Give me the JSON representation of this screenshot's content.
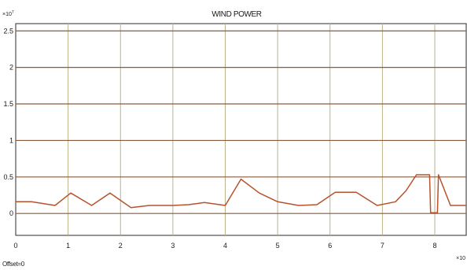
{
  "chart_data": {
    "type": "line",
    "title": "WIND POWER",
    "y_multiplier_label": "×10",
    "y_multiplier_exponent": "7",
    "x_multiplier_label": "×10",
    "offset_label": "Offset=0",
    "xlim": [
      0,
      8.6
    ],
    "ylim": [
      -0.3,
      2.6
    ],
    "x_ticks": [
      0,
      1,
      2,
      3,
      4,
      5,
      6,
      7,
      8
    ],
    "x_tick_labels": [
      "0",
      "1",
      "2",
      "3",
      "4",
      "5",
      "6",
      "7",
      "8"
    ],
    "y_ticks": [
      0,
      0.5,
      1,
      1.5,
      2,
      2.5
    ],
    "y_tick_labels": [
      "0",
      "0.5",
      "1",
      "1.5",
      "2",
      "2.5"
    ],
    "grid": true,
    "series_color": "#b5532d",
    "series": [
      {
        "x": [
          0,
          0.3,
          0.75,
          1.05,
          1.45,
          1.8,
          2.2,
          2.55,
          3.0,
          3.3,
          3.6,
          4.0,
          4.3,
          4.65,
          5.0,
          5.4,
          5.75,
          6.1,
          6.5,
          6.9,
          7.25,
          7.45,
          7.65,
          7.9,
          7.92,
          8.05,
          8.07,
          8.3,
          8.6
        ],
        "y": [
          0.16,
          0.16,
          0.11,
          0.28,
          0.11,
          0.28,
          0.08,
          0.11,
          0.11,
          0.12,
          0.15,
          0.11,
          0.47,
          0.28,
          0.16,
          0.11,
          0.12,
          0.29,
          0.29,
          0.11,
          0.16,
          0.31,
          0.53,
          0.53,
          0.01,
          0.01,
          0.53,
          0.11,
          0.11
        ]
      }
    ]
  }
}
